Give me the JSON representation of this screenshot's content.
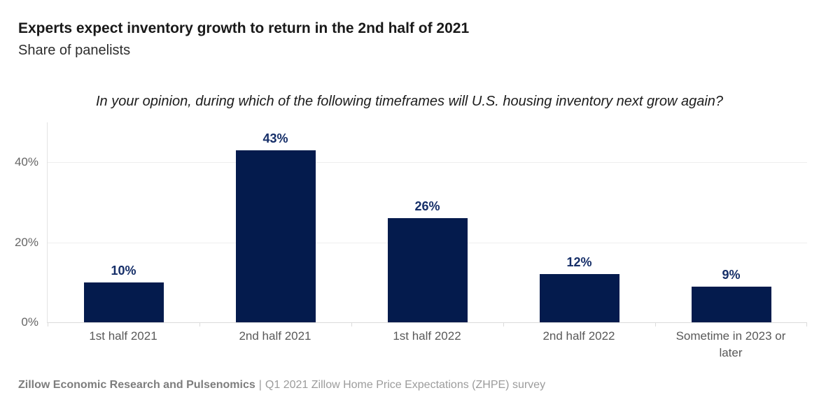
{
  "chart_data": {
    "type": "bar",
    "title": "Experts expect inventory growth to return in the 2nd half of 2021",
    "subtitle": "Share of panelists",
    "question": "In your opinion, during which of the following timeframes will U.S. housing inventory next grow again?",
    "categories": [
      "1st half 2021",
      "2nd half 2021",
      "1st half 2022",
      "2nd half 2022",
      "Sometime in 2023 or later"
    ],
    "values": [
      10,
      43,
      26,
      12,
      9
    ],
    "data_labels": [
      "10%",
      "43%",
      "26%",
      "12%",
      "9%"
    ],
    "xlabel": "",
    "ylabel": "",
    "ylim": [
      0,
      50
    ],
    "yticks": [
      0,
      20,
      40
    ],
    "ytick_labels": [
      "0%",
      "20%",
      "40%"
    ],
    "grid": "horizontal",
    "legend": "none",
    "bar_color": "#041b4d",
    "data_label_color": "#152e68",
    "axis_text_color": "#666666"
  },
  "footer": {
    "source": "Zillow Economic Research and Pulsenomics",
    "separator": "|",
    "detail": "Q1 2021 Zillow Home Price Expectations (ZHPE) survey"
  }
}
